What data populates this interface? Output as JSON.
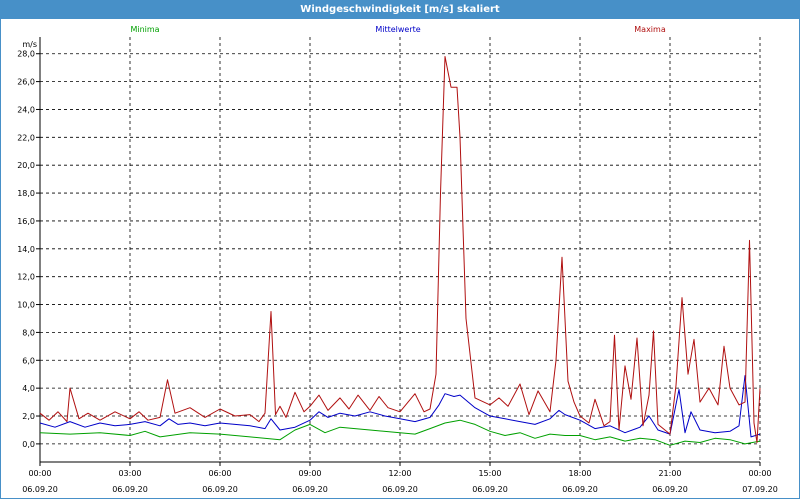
{
  "window": {
    "title": "Windgeschwindigkeit [m/s] skaliert"
  },
  "chart_data": {
    "type": "line",
    "title": "Windgeschwindigkeit [m/s] skaliert",
    "ylabel": "m/s",
    "xlabel": "",
    "ylim": [
      -1.3,
      29.2
    ],
    "xlim": [
      0,
      24
    ],
    "grid": true,
    "legend_position": "top",
    "y_ticks": [
      0,
      2,
      4,
      6,
      8,
      10,
      12,
      14,
      16,
      18,
      20,
      22,
      24,
      26,
      28
    ],
    "y_tick_labels": [
      "0,0",
      "2,0",
      "4,0",
      "6,0",
      "8,0",
      "10,0",
      "12,0",
      "14,0",
      "16,0",
      "18,0",
      "20,0",
      "22,0",
      "24,0",
      "26,0",
      "28,0"
    ],
    "x_ticks": [
      0,
      3,
      6,
      9,
      12,
      15,
      18,
      21,
      24
    ],
    "x_tick_time_labels": [
      "00:00",
      "03:00",
      "06:00",
      "09:00",
      "12:00",
      "15:00",
      "18:00",
      "21:00",
      "00:00"
    ],
    "x_tick_date_labels": [
      "06.09.20",
      "06.09.20",
      "06.09.20",
      "06.09.20",
      "06.09.20",
      "06.09.20",
      "06.09.20",
      "06.09.20",
      "07.09.20"
    ],
    "series": [
      {
        "name": "Minima",
        "color": "#00a000",
        "points": [
          [
            0,
            0.8
          ],
          [
            1,
            0.7
          ],
          [
            2,
            0.8
          ],
          [
            3,
            0.6
          ],
          [
            3.5,
            0.9
          ],
          [
            4,
            0.5
          ],
          [
            5,
            0.8
          ],
          [
            6,
            0.7
          ],
          [
            7,
            0.5
          ],
          [
            8,
            0.3
          ],
          [
            8.5,
            1.0
          ],
          [
            9,
            1.4
          ],
          [
            9.5,
            0.8
          ],
          [
            10,
            1.2
          ],
          [
            11,
            1.0
          ],
          [
            12,
            0.8
          ],
          [
            12.5,
            0.7
          ],
          [
            13,
            1.1
          ],
          [
            13.5,
            1.5
          ],
          [
            14,
            1.7
          ],
          [
            14.5,
            1.4
          ],
          [
            15,
            0.9
          ],
          [
            15.5,
            0.6
          ],
          [
            16,
            0.8
          ],
          [
            16.5,
            0.4
          ],
          [
            17,
            0.7
          ],
          [
            17.5,
            0.6
          ],
          [
            18,
            0.6
          ],
          [
            18.5,
            0.3
          ],
          [
            19,
            0.5
          ],
          [
            19.5,
            0.2
          ],
          [
            20,
            0.4
          ],
          [
            20.5,
            0.3
          ],
          [
            21,
            -0.1
          ],
          [
            21.5,
            0.2
          ],
          [
            22,
            0.1
          ],
          [
            22.5,
            0.4
          ],
          [
            23,
            0.3
          ],
          [
            23.5,
            0.0
          ],
          [
            24,
            0.2
          ]
        ]
      },
      {
        "name": "Mittelwerte",
        "color": "#0000c8",
        "points": [
          [
            0,
            1.5
          ],
          [
            0.5,
            1.2
          ],
          [
            1,
            1.6
          ],
          [
            1.5,
            1.2
          ],
          [
            2,
            1.5
          ],
          [
            2.5,
            1.3
          ],
          [
            3,
            1.4
          ],
          [
            3.5,
            1.6
          ],
          [
            4,
            1.3
          ],
          [
            4.3,
            1.8
          ],
          [
            4.6,
            1.4
          ],
          [
            5,
            1.5
          ],
          [
            5.5,
            1.3
          ],
          [
            6,
            1.5
          ],
          [
            6.5,
            1.4
          ],
          [
            7,
            1.3
          ],
          [
            7.5,
            1.1
          ],
          [
            7.7,
            1.8
          ],
          [
            8,
            1.0
          ],
          [
            8.5,
            1.2
          ],
          [
            9,
            1.7
          ],
          [
            9.3,
            2.3
          ],
          [
            9.6,
            1.9
          ],
          [
            10,
            2.2
          ],
          [
            10.5,
            2.0
          ],
          [
            11,
            2.3
          ],
          [
            11.5,
            2.0
          ],
          [
            12,
            1.8
          ],
          [
            12.5,
            1.6
          ],
          [
            13,
            1.9
          ],
          [
            13.3,
            2.8
          ],
          [
            13.5,
            3.6
          ],
          [
            13.8,
            3.4
          ],
          [
            14,
            3.5
          ],
          [
            14.5,
            2.6
          ],
          [
            15,
            2.0
          ],
          [
            15.5,
            1.8
          ],
          [
            16,
            1.6
          ],
          [
            16.5,
            1.4
          ],
          [
            17,
            1.8
          ],
          [
            17.3,
            2.4
          ],
          [
            17.5,
            2.1
          ],
          [
            18,
            1.7
          ],
          [
            18.5,
            1.1
          ],
          [
            19,
            1.3
          ],
          [
            19.5,
            0.8
          ],
          [
            20,
            1.2
          ],
          [
            20.3,
            2.0
          ],
          [
            20.6,
            1.0
          ],
          [
            21,
            0.7
          ],
          [
            21.3,
            3.9
          ],
          [
            21.5,
            0.8
          ],
          [
            21.7,
            2.3
          ],
          [
            22,
            1.0
          ],
          [
            22.5,
            0.8
          ],
          [
            23,
            0.9
          ],
          [
            23.3,
            1.3
          ],
          [
            23.5,
            4.9
          ],
          [
            23.7,
            0.5
          ],
          [
            24,
            0.7
          ]
        ]
      },
      {
        "name": "Maxima",
        "color": "#b01010",
        "points": [
          [
            0,
            2.2
          ],
          [
            0.3,
            1.7
          ],
          [
            0.6,
            2.3
          ],
          [
            0.9,
            1.6
          ],
          [
            1,
            4.0
          ],
          [
            1.3,
            1.8
          ],
          [
            1.6,
            2.2
          ],
          [
            2,
            1.7
          ],
          [
            2.5,
            2.3
          ],
          [
            3,
            1.8
          ],
          [
            3.3,
            2.3
          ],
          [
            3.6,
            1.7
          ],
          [
            4,
            1.9
          ],
          [
            4.25,
            4.6
          ],
          [
            4.5,
            2.2
          ],
          [
            5,
            2.6
          ],
          [
            5.5,
            1.9
          ],
          [
            6,
            2.5
          ],
          [
            6.5,
            2.0
          ],
          [
            7,
            2.1
          ],
          [
            7.3,
            1.6
          ],
          [
            7.5,
            2.2
          ],
          [
            7.7,
            9.5
          ],
          [
            7.85,
            2.1
          ],
          [
            8,
            2.7
          ],
          [
            8.2,
            1.9
          ],
          [
            8.5,
            3.7
          ],
          [
            8.8,
            2.3
          ],
          [
            9,
            2.7
          ],
          [
            9.3,
            3.5
          ],
          [
            9.6,
            2.4
          ],
          [
            10,
            3.3
          ],
          [
            10.3,
            2.5
          ],
          [
            10.6,
            3.5
          ],
          [
            11,
            2.4
          ],
          [
            11.3,
            3.4
          ],
          [
            11.6,
            2.6
          ],
          [
            12,
            2.3
          ],
          [
            12.5,
            3.6
          ],
          [
            12.8,
            2.3
          ],
          [
            13,
            2.5
          ],
          [
            13.2,
            5.0
          ],
          [
            13.35,
            18.0
          ],
          [
            13.5,
            27.8
          ],
          [
            13.7,
            25.6
          ],
          [
            13.9,
            25.6
          ],
          [
            14,
            22.0
          ],
          [
            14.2,
            9.0
          ],
          [
            14.5,
            3.3
          ],
          [
            15,
            2.8
          ],
          [
            15.3,
            3.3
          ],
          [
            15.6,
            2.7
          ],
          [
            16,
            4.3
          ],
          [
            16.3,
            2.1
          ],
          [
            16.6,
            3.8
          ],
          [
            17,
            2.3
          ],
          [
            17.2,
            6.0
          ],
          [
            17.4,
            13.4
          ],
          [
            17.6,
            4.5
          ],
          [
            17.8,
            3.0
          ],
          [
            18,
            2.0
          ],
          [
            18.3,
            1.5
          ],
          [
            18.5,
            3.2
          ],
          [
            18.8,
            1.3
          ],
          [
            19,
            1.6
          ],
          [
            19.15,
            7.8
          ],
          [
            19.3,
            1.0
          ],
          [
            19.5,
            5.6
          ],
          [
            19.7,
            3.2
          ],
          [
            19.9,
            7.6
          ],
          [
            20.1,
            1.3
          ],
          [
            20.3,
            3.5
          ],
          [
            20.45,
            8.1
          ],
          [
            20.6,
            1.4
          ],
          [
            21,
            0.7
          ],
          [
            21.2,
            4.2
          ],
          [
            21.4,
            10.5
          ],
          [
            21.6,
            5.0
          ],
          [
            21.8,
            7.5
          ],
          [
            22,
            3.0
          ],
          [
            22.3,
            4.0
          ],
          [
            22.6,
            2.8
          ],
          [
            22.8,
            7.0
          ],
          [
            23,
            4.0
          ],
          [
            23.3,
            2.8
          ],
          [
            23.5,
            3.0
          ],
          [
            23.65,
            14.6
          ],
          [
            23.8,
            1.5
          ],
          [
            23.9,
            0.1
          ],
          [
            24,
            4.0
          ]
        ]
      }
    ]
  }
}
